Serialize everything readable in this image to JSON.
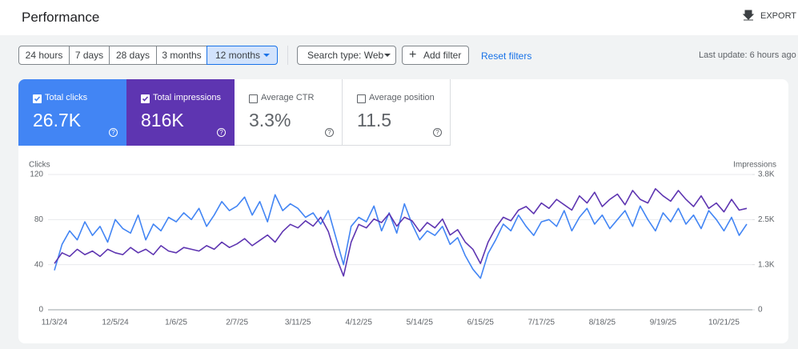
{
  "header": {
    "title": "Performance",
    "export": "EXPORT"
  },
  "filters": {
    "ranges": [
      "24 hours",
      "7 days",
      "28 days",
      "3 months",
      "12 months"
    ],
    "search_type": "Search type: Web",
    "add_filter": "Add filter",
    "reset": "Reset filters",
    "last_update": "Last update: 6 hours ago"
  },
  "cards": [
    {
      "label": "Total clicks",
      "value": "26.7K"
    },
    {
      "label": "Total impressions",
      "value": "816K"
    },
    {
      "label": "Average CTR",
      "value": "3.3%"
    },
    {
      "label": "Average position",
      "value": "11.5"
    }
  ],
  "chart_data": {
    "type": "line",
    "ylabel": "Clicks",
    "y2label": "Impressions",
    "x": [
      "11/3/24",
      "11/7/24",
      "11/11/24",
      "11/15/24",
      "11/19/24",
      "11/23/24",
      "11/27/24",
      "12/1/24",
      "12/5/24",
      "12/9/24",
      "12/13/24",
      "12/17/24",
      "12/21/24",
      "12/25/24",
      "12/29/24",
      "1/2/25",
      "1/6/25",
      "1/10/25",
      "1/14/25",
      "1/18/25",
      "1/22/25",
      "1/26/25",
      "1/30/25",
      "2/3/25",
      "2/7/25",
      "2/11/25",
      "2/15/25",
      "2/19/25",
      "2/23/25",
      "2/27/25",
      "3/3/25",
      "3/7/25",
      "3/11/25",
      "3/15/25",
      "3/19/25",
      "3/23/25",
      "3/27/25",
      "3/31/25",
      "4/4/25",
      "4/8/25",
      "4/12/25",
      "4/16/25",
      "4/20/25",
      "4/24/25",
      "4/28/25",
      "5/2/25",
      "5/6/25",
      "5/10/25",
      "5/14/25",
      "5/18/25",
      "5/22/25",
      "5/26/25",
      "5/30/25",
      "6/3/25",
      "6/7/25",
      "6/11/25",
      "6/15/25",
      "6/19/25",
      "6/23/25",
      "6/27/25",
      "7/1/25",
      "7/5/25",
      "7/9/25",
      "7/13/25",
      "7/17/25",
      "7/21/25",
      "7/25/25",
      "7/29/25",
      "8/2/25",
      "8/6/25",
      "8/10/25",
      "8/14/25",
      "8/18/25",
      "8/22/25",
      "8/26/25",
      "8/30/25",
      "9/3/25",
      "9/7/25",
      "9/11/25",
      "9/15/25",
      "9/19/25",
      "9/23/25",
      "9/27/25",
      "10/1/25",
      "10/5/25",
      "10/9/25",
      "10/13/25",
      "10/17/25",
      "10/21/25",
      "10/25/25",
      "10/29/25",
      "11/2/25"
    ],
    "series": [
      {
        "color": "#4285f4",
        "axis": "y",
        "values": [
          35,
          58,
          70,
          62,
          78,
          66,
          74,
          60,
          80,
          72,
          68,
          84,
          62,
          76,
          70,
          82,
          78,
          86,
          80,
          90,
          74,
          84,
          96,
          88,
          92,
          100,
          84,
          96,
          78,
          102,
          88,
          94,
          90,
          82,
          86,
          76,
          88,
          64,
          40,
          74,
          82,
          78,
          92,
          70,
          86,
          68,
          94,
          76,
          62,
          70,
          66,
          74,
          58,
          64,
          48,
          36,
          28,
          50,
          62,
          76,
          70,
          84,
          74,
          66,
          78,
          80,
          74,
          88,
          70,
          82,
          90,
          76,
          84,
          72,
          80,
          88,
          74,
          92,
          80,
          70,
          86,
          78,
          90,
          76,
          84,
          72,
          88,
          80,
          70,
          82,
          66,
          76
        ]
      },
      {
        "color": "#5e35b1",
        "axis": "y2",
        "values": [
          1300,
          1600,
          1500,
          1700,
          1550,
          1650,
          1500,
          1700,
          1600,
          1550,
          1750,
          1600,
          1700,
          1550,
          1800,
          1650,
          1600,
          1750,
          1700,
          1650,
          1800,
          1700,
          1900,
          1750,
          1850,
          2000,
          1800,
          1950,
          2100,
          1900,
          2200,
          2400,
          2300,
          2500,
          2350,
          2600,
          2200,
          1500,
          950,
          1900,
          2400,
          2300,
          2550,
          2450,
          2700,
          2350,
          2600,
          2500,
          2200,
          2450,
          2300,
          2550,
          2100,
          2250,
          1900,
          1700,
          1300,
          1900,
          2300,
          2600,
          2500,
          2800,
          2900,
          2700,
          3000,
          2850,
          3100,
          2950,
          2800,
          3200,
          3000,
          3300,
          2900,
          3100,
          3250,
          2950,
          3350,
          3100,
          3000,
          3400,
          3200,
          3050,
          3350,
          3100,
          2900,
          3200,
          2850,
          3000,
          2750,
          3100,
          2800,
          2850
        ]
      }
    ],
    "ylim": [
      0,
      120
    ],
    "yticks": [
      0,
      40,
      80,
      120
    ],
    "y2lim": [
      0,
      3800
    ],
    "y2ticks": [
      0,
      {
        "value": 1267,
        "label": "1.3K"
      },
      {
        "value": 2533,
        "label": "2.5K"
      },
      {
        "value": 3800,
        "label": "3.8K"
      }
    ],
    "grid": true
  }
}
